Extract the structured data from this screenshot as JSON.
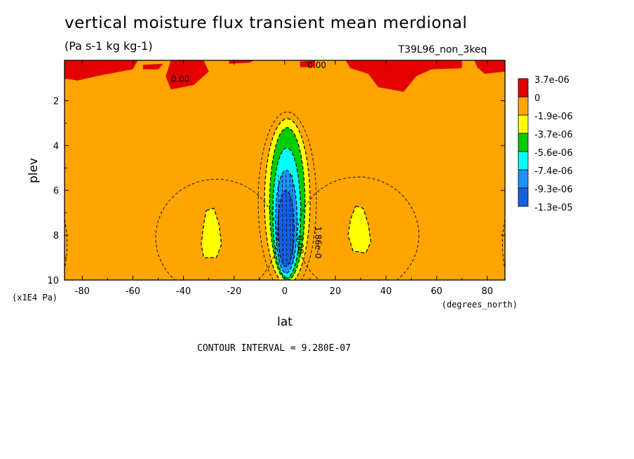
{
  "header": {
    "title": "vertical moisture flux transient mean merdional",
    "units": "(Pa s-1 kg kg-1)",
    "experiment": "T39L96_non_3keq"
  },
  "footer": {
    "contour_interval": "CONTOUR INTERVAL = 9.280E-07"
  },
  "chart_data": {
    "type": "heatmap",
    "subtype": "filled-contour",
    "xlabel": "lat",
    "x_units": "(degrees_north)",
    "ylabel": "plev",
    "y_units": "(x1E4 Pa)",
    "xlim": [
      -87,
      87
    ],
    "ylim": [
      10,
      0.2
    ],
    "y_inverted": true,
    "x_ticks": [
      -80,
      -60,
      -40,
      -20,
      0,
      20,
      40,
      60,
      80
    ],
    "x_tick_labels": [
      "-80",
      "-60",
      "-40",
      "-20",
      "0",
      "20",
      "40",
      "60",
      "80"
    ],
    "y_ticks": [
      2,
      4,
      6,
      8,
      10
    ],
    "y_tick_labels": [
      "2",
      "4",
      "6",
      "8",
      "10"
    ],
    "contour_interval": 9.28e-07,
    "contour_labels": [
      "0.00",
      "0.00",
      "1.86e-0",
      "0.00"
    ],
    "legend": {
      "placement": "right",
      "levels": [
        {
          "label": "3.7e-06",
          "color": "#e50000"
        },
        {
          "label": "0",
          "color": "#ffa500"
        },
        {
          "label": "-1.9e-06",
          "color": "#ffff00"
        },
        {
          "label": "-3.7e-06",
          "color": "#00cc00"
        },
        {
          "label": "-5.6e-06",
          "color": "#00ffff"
        },
        {
          "label": "-7.4e-06",
          "color": "#1e90ff"
        },
        {
          "label": "-9.3e-06",
          "color": "#1560e0"
        },
        {
          "label": "-1.3e-05",
          "color": ""
        }
      ]
    },
    "features": [
      {
        "kind": "minimum",
        "lat": 0,
        "plev": 8,
        "value_min": -1.3e-05,
        "description_level": "-1.3e-05"
      },
      {
        "kind": "secondary-minimum",
        "lat": -29,
        "plev": 8,
        "value": -1.9e-06
      },
      {
        "kind": "secondary-minimum",
        "lat": 29,
        "plev": 8,
        "value": -1.9e-06
      },
      {
        "kind": "positive-band",
        "plev_range": [
          0.2,
          1.5
        ],
        "value": 3.7e-06
      }
    ],
    "colors": {
      "positive": "#e50000",
      "background": "#ffa500",
      "yellow": "#ffff00",
      "green": "#00cc00",
      "cyan": "#00ffff",
      "blue": "#1e90ff",
      "darkblue": "#1560e0"
    }
  }
}
